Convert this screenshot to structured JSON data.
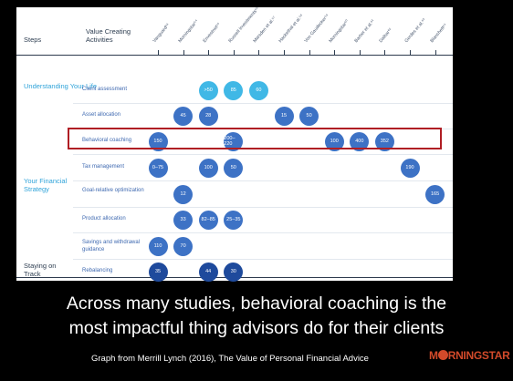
{
  "header": {
    "steps": "Steps",
    "activities": "Value Creating Activities"
  },
  "studies": [
    "Vanguard⁵³",
    "Morningstar⁵⁴",
    "Envestnet⁵⁵",
    "Russell Investments⁵⁶",
    "Marsden et al.⁵⁷",
    "Hackethal et al.⁵⁸",
    "Von Gaudecker⁵⁹",
    "Morningstar⁶⁰",
    "Barber et al.⁶¹",
    "Dalbar⁶²",
    "Gerdes et al.⁶³",
    "Blanchett⁶⁴"
  ],
  "categories": {
    "life": "Understanding Your Life",
    "strategy": "Your Financial Strategy",
    "track": "Staying on Track"
  },
  "rows": [
    {
      "label": "Client assessment",
      "bubbles": [
        {
          "col": 2,
          "v": ">50",
          "c": "#40b8e6"
        },
        {
          "col": 3,
          "v": "85",
          "c": "#40b8e6"
        },
        {
          "col": 4,
          "v": "60",
          "c": "#40b8e6"
        }
      ]
    },
    {
      "label": "Asset allocation",
      "bubbles": [
        {
          "col": 1,
          "v": "45",
          "c": "#3d72c5"
        },
        {
          "col": 2,
          "v": "28",
          "c": "#3d72c5"
        },
        {
          "col": 5,
          "v": "15",
          "c": "#3d72c5"
        },
        {
          "col": 6,
          "v": "50",
          "c": "#3d72c5"
        }
      ]
    },
    {
      "label": "Behavioral coaching",
      "bubbles": [
        {
          "col": 0,
          "v": "150",
          "c": "#3d72c5"
        },
        {
          "col": 3,
          "v": "200–220",
          "c": "#3d72c5"
        },
        {
          "col": 7,
          "v": "100",
          "c": "#3d72c5"
        },
        {
          "col": 8,
          "v": "400",
          "c": "#3d72c5"
        },
        {
          "col": 9,
          "v": "352",
          "c": "#3d72c5"
        }
      ]
    },
    {
      "label": "Tax management",
      "bubbles": [
        {
          "col": 0,
          "v": "0–75",
          "c": "#3d72c5"
        },
        {
          "col": 2,
          "v": "100",
          "c": "#3d72c5"
        },
        {
          "col": 3,
          "v": "50",
          "c": "#3d72c5"
        },
        {
          "col": 10,
          "v": "190",
          "c": "#3d72c5"
        }
      ]
    },
    {
      "label": "Goal-relative optimization",
      "bubbles": [
        {
          "col": 1,
          "v": "12",
          "c": "#3d72c5"
        },
        {
          "col": 11,
          "v": "165",
          "c": "#3d72c5"
        }
      ]
    },
    {
      "label": "Product allocation",
      "bubbles": [
        {
          "col": 1,
          "v": "33",
          "c": "#3d72c5"
        },
        {
          "col": 2,
          "v": "82–85",
          "c": "#3d72c5"
        },
        {
          "col": 3,
          "v": "25–35",
          "c": "#3d72c5"
        }
      ]
    },
    {
      "label": "Savings and withdrawal guidance",
      "bubbles": [
        {
          "col": 0,
          "v": "110",
          "c": "#3d72c5"
        },
        {
          "col": 1,
          "v": "70",
          "c": "#3d72c5"
        }
      ]
    },
    {
      "label": "Rebalancing",
      "bubbles": [
        {
          "col": 0,
          "v": "35",
          "c": "#1e4a9c"
        },
        {
          "col": 2,
          "v": "44",
          "c": "#1e4a9c"
        },
        {
          "col": 3,
          "v": "30",
          "c": "#1e4a9c"
        }
      ]
    }
  ],
  "caption": {
    "line1": "Across many studies, behavioral coaching is the",
    "line2": "most impactful thing advisors  do for their clients"
  },
  "credit": "Graph from Merrill Lynch (2016), The Value of Personal Financial Advice",
  "logo": {
    "pre": "M",
    "post": "RNINGSTAR"
  },
  "colors": {
    "category": "#2fa3d9",
    "label": "#3d68b0",
    "highlight": "#b01e24"
  }
}
